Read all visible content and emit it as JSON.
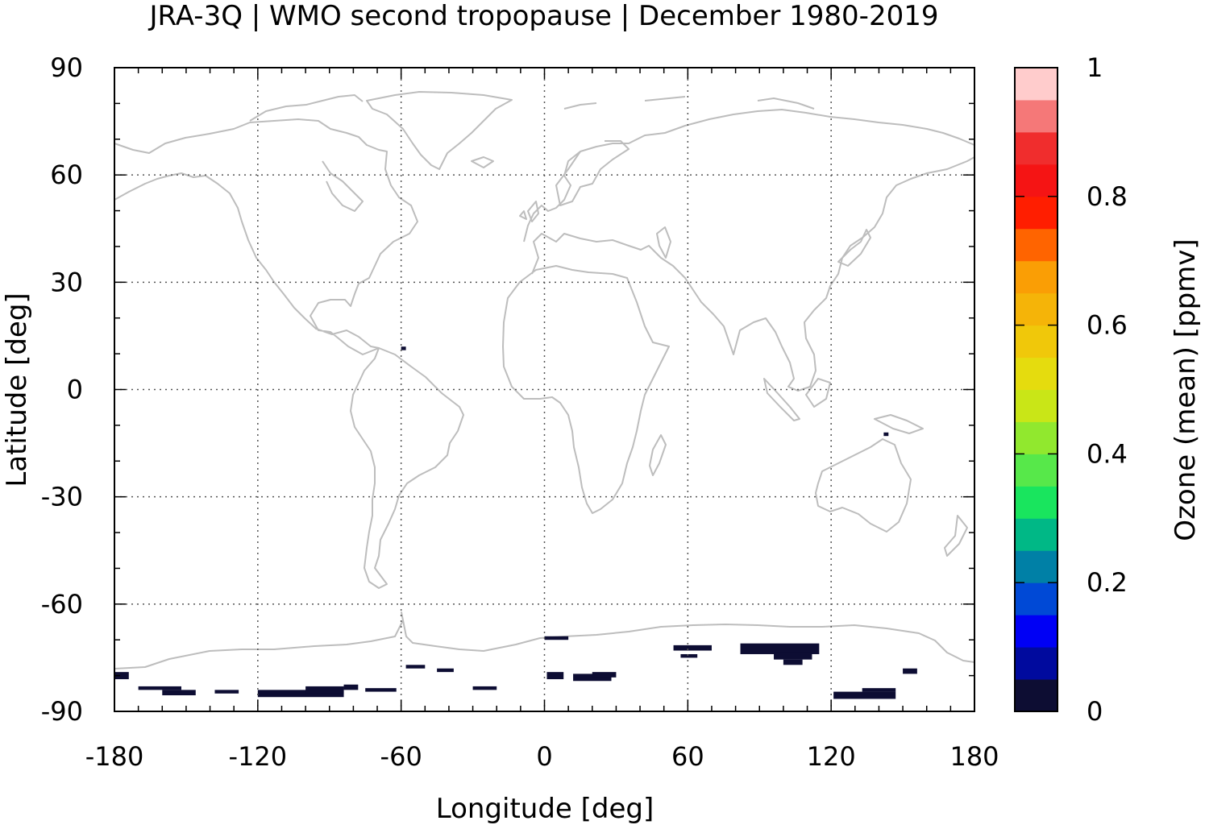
{
  "title": "JRA-3Q | WMO second tropopause | December 1980-2019",
  "colors": {
    "coastline": "#bdbdbd",
    "ozone_patch": "#0d0d33",
    "grid": "#555555"
  },
  "chart_data": {
    "type": "heatmap",
    "title": "JRA-3Q | WMO second tropopause | December 1980-2019",
    "xlabel": "Longitude [deg]",
    "ylabel": "Latitude [deg]",
    "xlim": [
      -180,
      180
    ],
    "ylim": [
      -90,
      90
    ],
    "xticks": [
      -180,
      -120,
      -60,
      0,
      60,
      120,
      180
    ],
    "yticks": [
      90,
      60,
      30,
      0,
      -30,
      -60,
      -90
    ],
    "grid": true,
    "colorbar": {
      "label": "Ozone (mean) [ppmv]",
      "range": [
        0,
        1
      ],
      "ticks": [
        "1",
        "0.8",
        "0.6",
        "0.4",
        "0.2",
        "0"
      ],
      "tick_values": [
        1,
        0.8,
        0.6,
        0.4,
        0.2,
        0
      ],
      "levels": [
        "#0d0d33",
        "#000a9e",
        "#0000f5",
        "#0049d6",
        "#0080a6",
        "#00b886",
        "#19e55e",
        "#57e84a",
        "#91e82e",
        "#c9e617",
        "#e5dc0e",
        "#f0c80a",
        "#f5b408",
        "#fa9e05",
        "#ff6400",
        "#ff1e00",
        "#f51414",
        "#f02d2d",
        "#f57878",
        "#ffcccc"
      ]
    },
    "data_patches": [
      {
        "lon": [
          -180,
          -174
        ],
        "lat": [
          -81,
          -79
        ]
      },
      {
        "lon": [
          -170,
          -152
        ],
        "lat": [
          -84,
          -83
        ]
      },
      {
        "lon": [
          -160,
          -146
        ],
        "lat": [
          -85.5,
          -84
        ]
      },
      {
        "lon": [
          -138,
          -128
        ],
        "lat": [
          -85,
          -84
        ]
      },
      {
        "lon": [
          -120,
          -84
        ],
        "lat": [
          -86,
          -84
        ]
      },
      {
        "lon": [
          -100,
          -84
        ],
        "lat": [
          -85,
          -83
        ]
      },
      {
        "lon": [
          -84,
          -78
        ],
        "lat": [
          -84,
          -82.5
        ]
      },
      {
        "lon": [
          -75,
          -62
        ],
        "lat": [
          -84.5,
          -83.5
        ]
      },
      {
        "lon": [
          -58,
          -50
        ],
        "lat": [
          -78,
          -77
        ]
      },
      {
        "lon": [
          -45,
          -38
        ],
        "lat": [
          -79,
          -78
        ]
      },
      {
        "lon": [
          -30,
          -20
        ],
        "lat": [
          -84,
          -83
        ]
      },
      {
        "lon": [
          0,
          10
        ],
        "lat": [
          -70,
          -69
        ]
      },
      {
        "lon": [
          1,
          8
        ],
        "lat": [
          -81,
          -79
        ]
      },
      {
        "lon": [
          12,
          28
        ],
        "lat": [
          -81.5,
          -79.5
        ]
      },
      {
        "lon": [
          20,
          30
        ],
        "lat": [
          -80.5,
          -79
        ]
      },
      {
        "lon": [
          54,
          70
        ],
        "lat": [
          -73,
          -71.5
        ]
      },
      {
        "lon": [
          57,
          64
        ],
        "lat": [
          -75,
          -74
        ]
      },
      {
        "lon": [
          82,
          115
        ],
        "lat": [
          -74,
          -71
        ]
      },
      {
        "lon": [
          96,
          112
        ],
        "lat": [
          -75.5,
          -73.5
        ]
      },
      {
        "lon": [
          100,
          108
        ],
        "lat": [
          -77,
          -75.5
        ]
      },
      {
        "lon": [
          121,
          147
        ],
        "lat": [
          -86.5,
          -84.5
        ]
      },
      {
        "lon": [
          133,
          147
        ],
        "lat": [
          -84.5,
          -83.5
        ]
      },
      {
        "lon": [
          150,
          156
        ],
        "lat": [
          -79.5,
          -78
        ]
      },
      {
        "lon": [
          -60,
          -58
        ],
        "lat": [
          11,
          12
        ]
      },
      {
        "lon": [
          142,
          144
        ],
        "lat": [
          -13,
          -12
        ]
      }
    ]
  }
}
